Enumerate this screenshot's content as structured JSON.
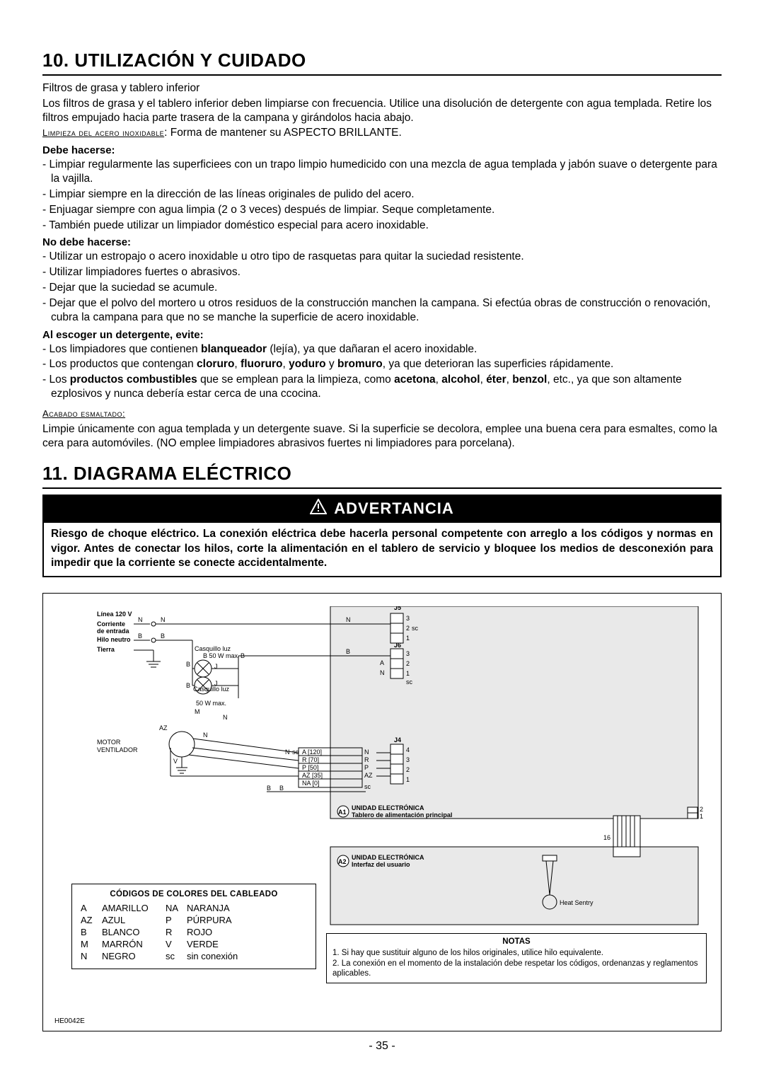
{
  "section10": {
    "title": "10. UTILIZACIÓN Y CUIDADO",
    "filters_heading": "Filtros de grasa y tablero inferior",
    "filters_text": "Los filtros de grasa y el tablero inferior deben limpiarse con frecuencia. Utilice una disolución de detergente con agua templada. Retire los filtros empujado hacia parte trasera de la campana y girándolos hacia abajo.",
    "stainless_label": "Limpieza del acero inoxidable",
    "stainless_text": ": Forma de mantener su ASPECTO BRILLANTE.",
    "do_label": "Debe hacerse:",
    "do_items": [
      "Limpiar regularmente las superficiees con un trapo limpio humedicido con una mezcla de agua templada y jabón suave o detergente para la vajilla.",
      "Limpiar siempre en la dirección de las líneas originales de pulido del acero.",
      "Enjuagar siempre con agua limpia (2 o 3 veces) después de limpiar. Seque completamente.",
      "También puede utilizar un limpiador doméstico especial para acero inoxidable."
    ],
    "dont_label": "No debe hacerse:",
    "dont_items": [
      "Utilizar un estropajo o acero inoxidable u otro tipo de rasquetas para quitar la suciedad resistente.",
      "Utilizar limpiadores fuertes o abrasivos.",
      "Dejar que la suciedad se acumule.",
      "Dejar que el polvo del mortero u otros residuos de la construcción manchen la campana. Si efectúa obras de construcción o renovación, cubra la campana para que no se manche la superficie de acero inoxidable."
    ],
    "avoid_label": "Al escoger un detergente, evite:",
    "avoid_items_html": [
      "Los limpiadores que contienen <b>blanqueador</b> (lejía), ya que dañaran el acero inoxidable.",
      "Los productos que contengan <b>cloruro</b>, <b>fluoruro</b>, <b>yoduro</b> y <b>bromuro</b>, ya que deterioran las superficies rápidamente.",
      "Los <b>productos combustibles</b> que se emplean para la limpieza, como <b>acetona</b>, <b>alcohol</b>, <b>éter</b>, <b>benzol</b>, etc., ya que son altamente ezplosivos y nunca debería estar cerca de una ccocina."
    ],
    "enamel_label": "Acabado esmaltado:",
    "enamel_text": "Limpie únicamente con agua templada y un detergente suave. Si la superficie se decolora, emplee una buena cera para esmaltes, como la cera para automóviles. (NO emplee limpiadores abrasivos fuertes ni limpiadores para porcelana)."
  },
  "section11": {
    "title": "11. DIAGRAMA ELÉCTRICO",
    "warning_title": "ADVERTANCIA",
    "warning_text": "Riesgo de choque eléctrico. La conexión eléctrica debe hacerla personal competente con arreglo a los códigos y normas en vigor. Antes de conectar los hilos, corte la alimentación en el tablero de servicio y bloquee los medios de desconexión para impedir que la corriente se conecte accidentalmente."
  },
  "diagram": {
    "line_label": "Línea 120 V",
    "current_in": "Corriente de entrada",
    "neutral": "Hilo neutro",
    "ground": "Tierra",
    "motor": "MOTOR",
    "fan": "VENTILADOR",
    "socket": "Casquillo luz",
    "socket_w": "50 W max.",
    "elec_unit": "UNIDAD ELECTRÓNICA",
    "main_board": "Tablero de alimentación principal",
    "ui_board": "Interfaz del usuario",
    "heat_sentry": "Heat Sentry",
    "conn_J4": "J4",
    "conn_J5": "J5",
    "conn_J6": "J6",
    "J5_pins": [
      "3",
      "2",
      "1"
    ],
    "J6_pins": [
      "3",
      "2",
      "1"
    ],
    "J4_pins": [
      "4",
      "3",
      "2",
      "1"
    ],
    "J4_wires": [
      {
        "label": "A [120]",
        "pin": "N",
        "color": "N"
      },
      {
        "label": "R [70]",
        "pin": "R",
        "color": "R"
      },
      {
        "label": "P [50]",
        "pin": "P",
        "color": "P"
      },
      {
        "label": "AZ [35]",
        "pin": "AZ",
        "color": "AZ"
      },
      {
        "label": "NA [0]",
        "pin": "",
        "color": "NA"
      }
    ],
    "wire_J5_N": "N",
    "wire_J5_sc": "sc",
    "wire_J6_B": "B",
    "wire_J6_A": "A",
    "wire_J6_N": "N",
    "wire_J6_sc": "sc",
    "label_16": "16",
    "label_A1": "A1",
    "label_A2": "A2",
    "label_B_B": "B",
    "label_N_N": "N",
    "label_sc": "sc",
    "doc_id": "HE0042E"
  },
  "color_codes": {
    "title": "CÓDIGOS DE COLORES DEL CABLEADO",
    "rows": [
      [
        "A",
        "AMARILLO",
        "NA",
        "NARANJA"
      ],
      [
        "AZ",
        "AZUL",
        "P",
        "PÚRPURA"
      ],
      [
        "B",
        "BLANCO",
        "R",
        "ROJO"
      ],
      [
        "M",
        "MARRÓN",
        "V",
        "VERDE"
      ],
      [
        "N",
        "NEGRO",
        "sc",
        "sin conexión"
      ]
    ]
  },
  "notes": {
    "title": "NOTAS",
    "items": [
      "1. Si hay que sustituir alguno de los hilos originales, utilice hilo equivalente.",
      "2. La conexión en el momento de la instalación debe respetar los códigos, ordenanzas y reglamentos aplicables."
    ]
  },
  "page_number": "- 35 -",
  "colors": {
    "text": "#000000",
    "bg": "#ffffff",
    "diag_fill": "#e9e9e9"
  }
}
